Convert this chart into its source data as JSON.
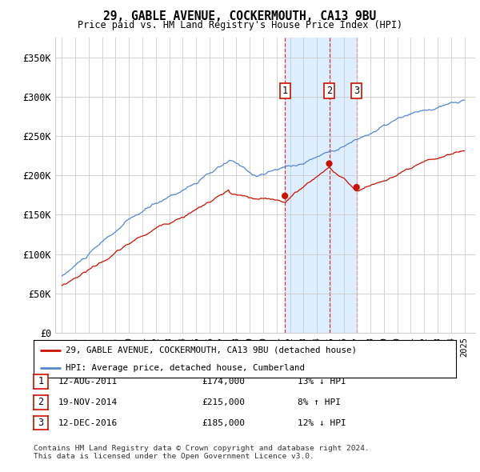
{
  "title": "29, GABLE AVENUE, COCKERMOUTH, CA13 9BU",
  "subtitle": "Price paid vs. HM Land Registry's House Price Index (HPI)",
  "ylabel_ticks": [
    "£0",
    "£50K",
    "£100K",
    "£150K",
    "£200K",
    "£250K",
    "£300K",
    "£350K"
  ],
  "ytick_vals": [
    0,
    50000,
    100000,
    150000,
    200000,
    250000,
    300000,
    350000
  ],
  "ylim": [
    0,
    375000
  ],
  "xlim": [
    1994.5,
    2025.8
  ],
  "sale_dates_num": [
    2011.62,
    2014.92,
    2016.96
  ],
  "sale_prices": [
    174000,
    215000,
    185000
  ],
  "sale_labels": [
    "1",
    "2",
    "3"
  ],
  "legend_line1": "29, GABLE AVENUE, COCKERMOUTH, CA13 9BU (detached house)",
  "legend_line2": "HPI: Average price, detached house, Cumberland",
  "table_data": [
    [
      "1",
      "12-AUG-2011",
      "£174,000",
      "13% ↓ HPI"
    ],
    [
      "2",
      "19-NOV-2014",
      "£215,000",
      "8% ↑ HPI"
    ],
    [
      "3",
      "12-DEC-2016",
      "£185,000",
      "12% ↓ HPI"
    ]
  ],
  "footer": "Contains HM Land Registry data © Crown copyright and database right 2024.\nThis data is licensed under the Open Government Licence v3.0.",
  "hpi_color": "#5588cc",
  "sale_color": "#cc1100",
  "vline_color": "#dd2222",
  "shade_color": "#ddeeff",
  "background_color": "#ffffff",
  "grid_color": "#cccccc",
  "label_box_color": "#cc1100"
}
